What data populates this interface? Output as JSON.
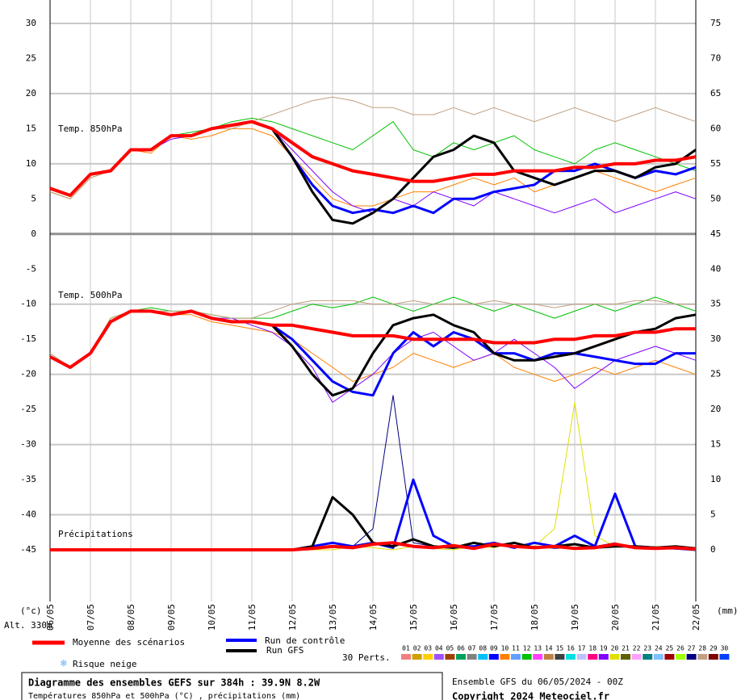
{
  "chart_data": {
    "type": "line",
    "xlim": [
      0,
      384
    ],
    "xticks": [
      {
        "value": 0,
        "label": "06/05"
      },
      {
        "value": 24,
        "label": "07/05"
      },
      {
        "value": 48,
        "label": "08/05"
      },
      {
        "value": 72,
        "label": "09/05"
      },
      {
        "value": 96,
        "label": "10/05"
      },
      {
        "value": 120,
        "label": "11/05"
      },
      {
        "value": 144,
        "label": "12/05"
      },
      {
        "value": 168,
        "label": "13/05"
      },
      {
        "value": 192,
        "label": "14/05"
      },
      {
        "value": 216,
        "label": "15/05"
      },
      {
        "value": 240,
        "label": "16/05"
      },
      {
        "value": 264,
        "label": "17/05"
      },
      {
        "value": 288,
        "label": "18/05"
      },
      {
        "value": 312,
        "label": "19/05"
      },
      {
        "value": 336,
        "label": "20/05"
      },
      {
        "value": 360,
        "label": "21/05"
      },
      {
        "value": 384,
        "label": "22/05"
      }
    ],
    "x": [
      0,
      12,
      24,
      36,
      48,
      60,
      72,
      84,
      96,
      108,
      120,
      132,
      144,
      156,
      168,
      180,
      192,
      204,
      216,
      228,
      240,
      252,
      264,
      276,
      288,
      300,
      312,
      324,
      336,
      348,
      360,
      372,
      384
    ],
    "ylim": [
      -45,
      30
    ],
    "yticks": [
      -45,
      -40,
      -35,
      -30,
      -25,
      -20,
      -15,
      -10,
      -5,
      0,
      5,
      10,
      15,
      20,
      25,
      30
    ],
    "y2lim": [
      0,
      75
    ],
    "y2ticks": [
      0,
      5,
      10,
      15,
      20,
      25,
      30,
      35,
      40,
      45,
      50,
      55,
      60,
      65,
      70,
      75
    ],
    "ylabel": "(°c)",
    "y2label": "(mm)",
    "altitude": "Alt. 330m",
    "grid": true,
    "legend": [
      {
        "name": "Moyenne des scénarios",
        "color": "#ff0000"
      },
      {
        "name": "Run de contrôle",
        "color": "#0000ff"
      },
      {
        "name": "Run GFS",
        "color": "#000000"
      }
    ],
    "perts_label": "30 Perts.",
    "perts_legend": [
      {
        "name": "01",
        "color": "#f08080"
      },
      {
        "name": "02",
        "color": "#d0a000"
      },
      {
        "name": "03",
        "color": "#ffd000"
      },
      {
        "name": "04",
        "color": "#a050ff"
      },
      {
        "name": "05",
        "color": "#a04000"
      },
      {
        "name": "06",
        "color": "#00a060"
      },
      {
        "name": "07",
        "color": "#808080"
      },
      {
        "name": "08",
        "color": "#00c0ff"
      },
      {
        "name": "09",
        "color": "#0000ff"
      },
      {
        "name": "10",
        "color": "#ff8000"
      },
      {
        "name": "11",
        "color": "#60a0ff"
      },
      {
        "name": "12",
        "color": "#00c000"
      },
      {
        "name": "13",
        "color": "#ff40ff"
      },
      {
        "name": "14",
        "color": "#c08040"
      },
      {
        "name": "15",
        "color": "#404040"
      },
      {
        "name": "16",
        "color": "#00e0e0"
      },
      {
        "name": "17",
        "color": "#c0c0ff"
      },
      {
        "name": "18",
        "color": "#ff0080"
      },
      {
        "name": "19",
        "color": "#8000ff"
      },
      {
        "name": "20",
        "color": "#e0e000"
      },
      {
        "name": "21",
        "color": "#606000"
      },
      {
        "name": "22",
        "color": "#ffa0ff"
      },
      {
        "name": "23",
        "color": "#008080"
      },
      {
        "name": "24",
        "color": "#80c0ff"
      },
      {
        "name": "25",
        "color": "#a00000"
      },
      {
        "name": "26",
        "color": "#a0ff00"
      },
      {
        "name": "27",
        "color": "#000080"
      },
      {
        "name": "28",
        "color": "#c0a080"
      },
      {
        "name": "29",
        "color": "#800000"
      },
      {
        "name": "30",
        "color": "#0040ff"
      }
    ],
    "snow_label": "Risque neige",
    "title": "Diagramme des ensembles GEFS sur 384h : 39.9N 8.2W",
    "subtitle": "Températures 850hPa et 500hPa (°C) , précipitations (mm)",
    "run_info": "Ensemble GFS du 06/05/2024 - 00Z",
    "copyright": "Copyright 2024 Meteociel.fr",
    "groups": [
      {
        "label": "Temp. 850hPa",
        "axis": "y",
        "mean": [
          6.5,
          5.5,
          8.5,
          9,
          12,
          12,
          14,
          14,
          15,
          15.5,
          16,
          15,
          13,
          11,
          10,
          9,
          8.5,
          8,
          7.5,
          7.5,
          8,
          8.5,
          8.5,
          9,
          9,
          9,
          9.5,
          9.5,
          10,
          10,
          10.5,
          10.5,
          11
        ],
        "control": [
          6.5,
          5.5,
          8.5,
          9,
          12,
          12,
          14,
          14,
          15,
          15.5,
          16,
          15,
          11,
          7,
          4,
          3,
          3.5,
          3,
          4,
          3,
          5,
          5,
          6,
          6.5,
          7,
          9,
          9,
          10,
          9,
          8,
          9,
          8.5,
          9.5
        ],
        "gfs": [
          6.5,
          5.5,
          8.5,
          9,
          12,
          12,
          14,
          14,
          15,
          15.5,
          16,
          15,
          11,
          6,
          2,
          1.5,
          3,
          5,
          8,
          11,
          12,
          14,
          13,
          9,
          8,
          7,
          8,
          9,
          9,
          8,
          9.5,
          10,
          12
        ],
        "perturbations": [
          {
            "name": "12",
            "values": [
              6,
              5,
              8,
              9,
              12,
              12,
              14,
              14.5,
              15,
              16,
              16.5,
              16,
              15,
              14,
              13,
              12,
              14,
              16,
              12,
              11,
              13,
              12,
              13,
              14,
              12,
              11,
              10,
              12,
              13,
              12,
              11,
              10,
              9
            ]
          },
          {
            "name": "10",
            "values": [
              6,
              5,
              8,
              9,
              12,
              11.5,
              14,
              13.5,
              14,
              15,
              15,
              14,
              11,
              8,
              5,
              4,
              4,
              5,
              6,
              6,
              7,
              8,
              7,
              8,
              6,
              7,
              8,
              9,
              8,
              7,
              6,
              7,
              8
            ]
          },
          {
            "name": "19",
            "values": [
              6.5,
              5.5,
              8.5,
              9,
              12,
              12,
              13.5,
              14,
              15,
              15.5,
              16,
              15,
              12,
              9,
              6,
              4,
              3,
              5,
              4,
              6,
              5,
              4,
              6,
              5,
              4,
              3,
              4,
              5,
              3,
              4,
              5,
              6,
              5
            ]
          },
          {
            "name": "28",
            "values": [
              6,
              5,
              8,
              9,
              12,
              12,
              14,
              14,
              15,
              15,
              16,
              17,
              18,
              19,
              19.5,
              19,
              18,
              18,
              17,
              17,
              18,
              17,
              18,
              17,
              16,
              17,
              18,
              17,
              16,
              17,
              18,
              17,
              16
            ]
          }
        ]
      },
      {
        "label": "Temp. 500hPa",
        "axis": "y",
        "mean": [
          -17.5,
          -19,
          -17,
          -12.5,
          -11,
          -11,
          -11.5,
          -11,
          -12,
          -12.5,
          -12.5,
          -13,
          -13,
          -13.5,
          -14,
          -14.5,
          -14.5,
          -14.5,
          -15,
          -15,
          -15,
          -15,
          -15.5,
          -15.5,
          -15.5,
          -15,
          -15,
          -14.5,
          -14.5,
          -14,
          -14,
          -13.5,
          -13.5
        ],
        "control": [
          -17.5,
          -19,
          -17,
          -12.5,
          -11,
          -11,
          -11.5,
          -11,
          -12,
          -12.5,
          -12.5,
          -13,
          -15,
          -18,
          -21,
          -22.5,
          -23,
          -17,
          -14,
          -16,
          -14,
          -15,
          -17,
          -17,
          -18,
          -17,
          -17,
          -17.5,
          -18,
          -18.5,
          -18.5,
          -17,
          -17
        ],
        "gfs": [
          -17.5,
          -19,
          -17,
          -12.5,
          -11,
          -11,
          -11.5,
          -11,
          -12,
          -12.5,
          -12.5,
          -13,
          -16,
          -20,
          -23,
          -22,
          -17,
          -13,
          -12,
          -11.5,
          -13,
          -14,
          -17,
          -18,
          -18,
          -17.5,
          -17,
          -16,
          -15,
          -14,
          -13.5,
          -12,
          -11.5
        ],
        "perturbations": [
          {
            "name": "12",
            "values": [
              -17,
              -19,
              -17,
              -12,
              -11,
              -10.5,
              -11,
              -11,
              -11.5,
              -12,
              -12,
              -12,
              -11,
              -10,
              -10.5,
              -10,
              -9,
              -10,
              -11,
              -10,
              -9,
              -10,
              -11,
              -10,
              -11,
              -12,
              -11,
              -10,
              -11,
              -10,
              -9,
              -10,
              -11
            ]
          },
          {
            "name": "10",
            "values": [
              -17.5,
              -19,
              -17,
              -12.5,
              -11,
              -11,
              -11.5,
              -11.5,
              -12.5,
              -13,
              -13.5,
              -14,
              -15,
              -17,
              -19,
              -21,
              -20,
              -19,
              -17,
              -18,
              -19,
              -18,
              -17,
              -19,
              -20,
              -21,
              -20,
              -19,
              -20,
              -19,
              -18,
              -19,
              -20
            ]
          },
          {
            "name": "19",
            "values": [
              -17.5,
              -19,
              -17,
              -12.5,
              -11,
              -11,
              -11.5,
              -11,
              -12,
              -12,
              -13,
              -14,
              -16,
              -19,
              -24,
              -22,
              -20,
              -17,
              -15,
              -14,
              -16,
              -18,
              -17,
              -15,
              -17,
              -19,
              -22,
              -20,
              -18,
              -17,
              -16,
              -17,
              -18
            ]
          },
          {
            "name": "28",
            "values": [
              -17,
              -19,
              -17,
              -12,
              -11,
              -11,
              -11,
              -11,
              -11.5,
              -12,
              -12,
              -11,
              -10,
              -9.5,
              -9.5,
              -9.5,
              -10,
              -10,
              -9.5,
              -10,
              -10,
              -10,
              -9.5,
              -10,
              -10,
              -10.5,
              -10,
              -10,
              -10,
              -9.5,
              -9.5,
              -10,
              -10
            ]
          }
        ]
      },
      {
        "label": "Précipitations",
        "axis": "y2",
        "mean": [
          0,
          0,
          0,
          0,
          0,
          0,
          0,
          0,
          0,
          0,
          0,
          0,
          0,
          0.2,
          0.5,
          0.3,
          0.8,
          1,
          0.5,
          0.3,
          0.6,
          0.2,
          0.8,
          0.5,
          0.3,
          0.5,
          0.2,
          0.3,
          0.8,
          0.3,
          0.2,
          0.3,
          0.1
        ],
        "control": [
          0,
          0,
          0,
          0,
          0,
          0,
          0,
          0,
          0,
          0,
          0,
          0,
          0,
          0.5,
          1,
          0.5,
          1,
          0.3,
          10,
          2,
          0.5,
          0.5,
          1,
          0.3,
          1,
          0.5,
          2,
          0.5,
          8,
          0.5,
          0.3,
          0.2,
          0
        ],
        "gfs": [
          0,
          0,
          0,
          0,
          0,
          0,
          0,
          0,
          0,
          0,
          0,
          0,
          0,
          0.5,
          7.5,
          5,
          1,
          0.5,
          1.5,
          0.5,
          0.3,
          1,
          0.5,
          1,
          0.3,
          0.5,
          0.8,
          0.3,
          0.5,
          0.5,
          0.3,
          0.5,
          0.2
        ],
        "perturbations": [
          {
            "name": "20",
            "values": [
              0,
              0,
              0,
              0,
              0,
              0,
              0,
              0,
              0,
              0,
              0,
              0,
              0,
              0,
              0,
              0.5,
              0.3,
              0,
              0.5,
              0.2,
              0,
              0.5,
              0.3,
              1,
              0.5,
              3,
              21,
              2,
              0.5,
              0.3,
              0.5,
              0.2,
              0
            ]
          },
          {
            "name": "27",
            "values": [
              0,
              0,
              0,
              0,
              0,
              0,
              0,
              0,
              0,
              0,
              0,
              0,
              0,
              0.3,
              1,
              0.5,
              3,
              22,
              1,
              0.5,
              0.2,
              0.5,
              1,
              0.3,
              0.5,
              0.2,
              0.3,
              0.5,
              1,
              0.3,
              0.2,
              0.1,
              0
            ]
          }
        ]
      }
    ]
  }
}
